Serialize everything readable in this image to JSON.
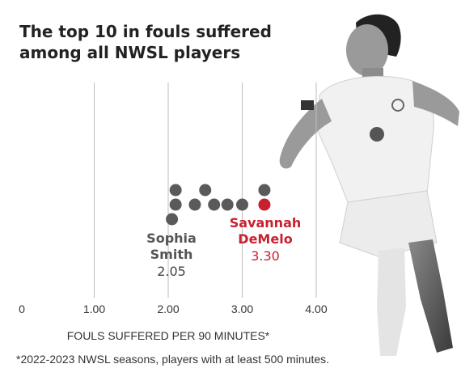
{
  "title_lines": [
    "The top 10 in fouls suffered",
    "among all NWSL players"
  ],
  "footnote": "*2022-2023 NWSL seasons, players with at least 500 minutes.",
  "colors": {
    "dot": "#5a5a5a",
    "highlight": "#c8202f",
    "grid": "#bdbdbd",
    "text": "#222222"
  },
  "chart_data": {
    "type": "scatter",
    "xlabel": "FOULS SUFFERED PER 90 MINUTES*",
    "xlim": [
      0,
      4
    ],
    "xticks": [
      0,
      1,
      2,
      3,
      4
    ],
    "xtick_labels": [
      "0",
      "1.00",
      "2.00",
      "3.00",
      "4.00"
    ],
    "grid": true,
    "points": [
      {
        "x": 2.05,
        "stack": 0,
        "highlight": false
      },
      {
        "x": 2.1,
        "stack": 1,
        "highlight": false
      },
      {
        "x": 2.1,
        "stack": 2,
        "highlight": false
      },
      {
        "x": 2.36,
        "stack": 1,
        "highlight": false
      },
      {
        "x": 2.5,
        "stack": 2,
        "highlight": false
      },
      {
        "x": 2.62,
        "stack": 1,
        "highlight": false
      },
      {
        "x": 2.8,
        "stack": 1,
        "highlight": false
      },
      {
        "x": 3.0,
        "stack": 1,
        "highlight": false
      },
      {
        "x": 3.3,
        "stack": 2,
        "highlight": false
      },
      {
        "x": 3.3,
        "stack": 1,
        "highlight": true
      }
    ],
    "annotations": [
      {
        "id": "smith",
        "name_lines": [
          "Sophia",
          "Smith"
        ],
        "value": "2.05",
        "highlight": false
      },
      {
        "id": "demelo",
        "name_lines": [
          "Savannah",
          "DeMelo"
        ],
        "value": "3.30",
        "highlight": true
      }
    ]
  }
}
